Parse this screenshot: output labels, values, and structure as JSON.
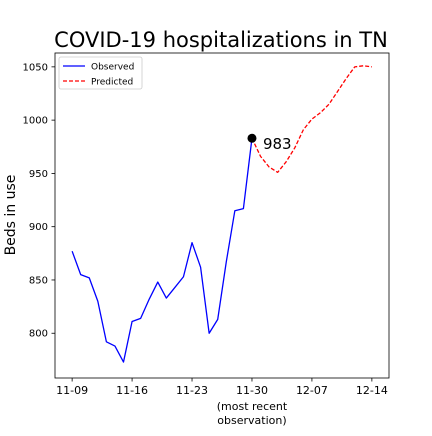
{
  "chart_data": {
    "type": "line",
    "title": "COVID-19 hospitalizations in TN",
    "ylabel": "Beds in use",
    "xlabel": "",
    "x_tick_labels": [
      {
        "date": "11-09",
        "label": "11-09",
        "sub": []
      },
      {
        "date": "11-16",
        "label": "11-16",
        "sub": []
      },
      {
        "date": "11-23",
        "label": "11-23",
        "sub": []
      },
      {
        "date": "11-30",
        "label": "11-30",
        "sub": [
          "(most recent",
          "observation)"
        ]
      },
      {
        "date": "12-07",
        "label": "12-07",
        "sub": []
      },
      {
        "date": "12-14",
        "label": "12-14",
        "sub": []
      }
    ],
    "y_ticks": [
      800,
      850,
      900,
      950,
      1000,
      1050
    ],
    "ylim": [
      758,
      1063
    ],
    "xlim": [
      "11-07",
      "12-16"
    ],
    "grid": false,
    "legend_position": "top-left",
    "series": [
      {
        "name": "Observed",
        "color": "#0000ff",
        "style": "solid",
        "points": [
          {
            "x": "11-09",
            "y": 877
          },
          {
            "x": "11-10",
            "y": 855
          },
          {
            "x": "11-11",
            "y": 852
          },
          {
            "x": "11-12",
            "y": 830
          },
          {
            "x": "11-13",
            "y": 792
          },
          {
            "x": "11-14",
            "y": 788
          },
          {
            "x": "11-15",
            "y": 773
          },
          {
            "x": "11-16",
            "y": 811
          },
          {
            "x": "11-17",
            "y": 814
          },
          {
            "x": "11-18",
            "y": 832
          },
          {
            "x": "11-19",
            "y": 848
          },
          {
            "x": "11-20",
            "y": 833
          },
          {
            "x": "11-21",
            "y": 843
          },
          {
            "x": "11-22",
            "y": 853
          },
          {
            "x": "11-23",
            "y": 885
          },
          {
            "x": "11-24",
            "y": 862
          },
          {
            "x": "11-25",
            "y": 800
          },
          {
            "x": "11-26",
            "y": 813
          },
          {
            "x": "11-27",
            "y": 867
          },
          {
            "x": "11-28",
            "y": 915
          },
          {
            "x": "11-29",
            "y": 917
          },
          {
            "x": "11-30",
            "y": 983
          }
        ]
      },
      {
        "name": "Predicted",
        "color": "#ff0000",
        "style": "dashed",
        "points": [
          {
            "x": "11-30",
            "y": 983
          },
          {
            "x": "12-01",
            "y": 966
          },
          {
            "x": "12-02",
            "y": 956
          },
          {
            "x": "12-03",
            "y": 951
          },
          {
            "x": "12-04",
            "y": 961
          },
          {
            "x": "12-05",
            "y": 974
          },
          {
            "x": "12-06",
            "y": 991
          },
          {
            "x": "12-07",
            "y": 1001
          },
          {
            "x": "12-08",
            "y": 1007
          },
          {
            "x": "12-09",
            "y": 1015
          },
          {
            "x": "12-10",
            "y": 1027
          },
          {
            "x": "12-11",
            "y": 1039
          },
          {
            "x": "12-12",
            "y": 1050
          },
          {
            "x": "12-13",
            "y": 1051
          },
          {
            "x": "12-14",
            "y": 1050
          }
        ]
      }
    ],
    "annotation": {
      "x": "11-30",
      "y": 983,
      "label": "983",
      "marker_color": "#000000"
    }
  }
}
